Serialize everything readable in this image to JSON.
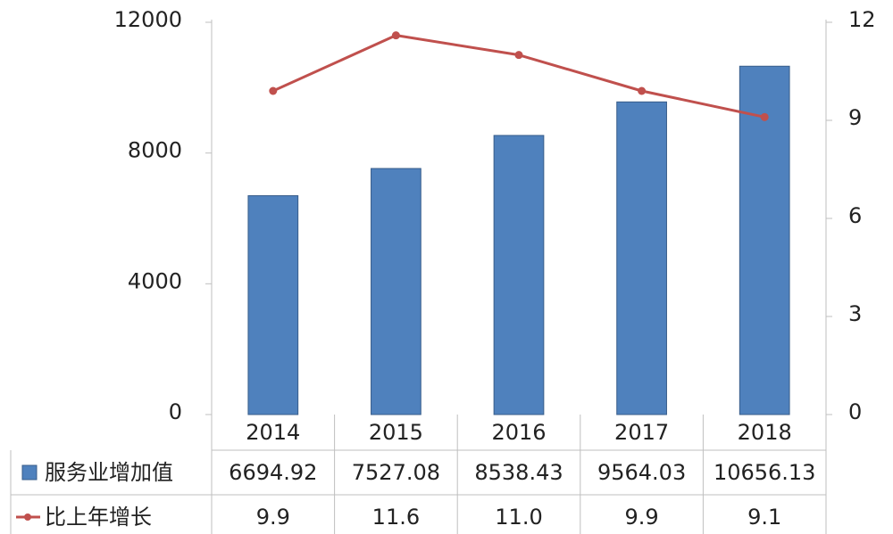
{
  "chart_data": {
    "type": "bar",
    "categories": [
      "2014",
      "2015",
      "2016",
      "2017",
      "2018"
    ],
    "series": [
      {
        "name": "服务业增加值",
        "type": "bar",
        "axis": "left",
        "values": [
          6694.92,
          7527.08,
          8538.43,
          9564.03,
          10656.13
        ],
        "value_labels": [
          "6694.92",
          "7527.08",
          "8538.43",
          "9564.03",
          "10656.13"
        ],
        "color": "#4f81bd"
      },
      {
        "name": "比上年增长",
        "type": "line",
        "axis": "right",
        "values": [
          9.9,
          11.6,
          11.0,
          9.9,
          9.1
        ],
        "value_labels": [
          "9.9",
          "11.6",
          "11.0",
          "9.9",
          "9.1"
        ],
        "color": "#c0504d"
      }
    ],
    "y_left": {
      "ticks": [
        "0",
        "4000",
        "8000",
        "12000"
      ],
      "tick_values": [
        0,
        4000,
        8000,
        12000
      ],
      "ylim": [
        0,
        12000
      ]
    },
    "y_right": {
      "ticks": [
        "0",
        "3",
        "6",
        "9",
        "12"
      ],
      "tick_values": [
        0,
        3,
        6,
        9,
        12
      ],
      "ylim": [
        0,
        12
      ]
    },
    "grid": false,
    "data_table": true
  }
}
